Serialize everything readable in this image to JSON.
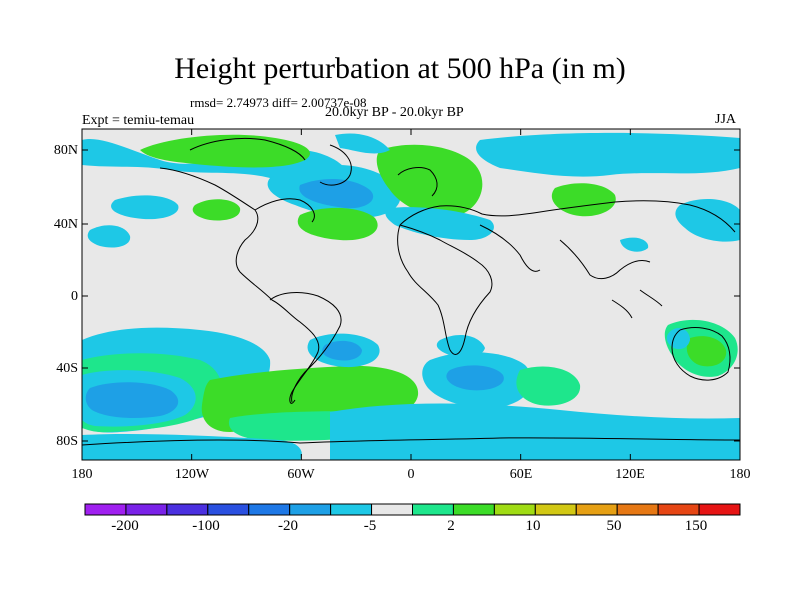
{
  "title": "Height perturbation at 500 hPa (in m)",
  "stats": "rmsd= 2.74973 diff= 2.00737e-08",
  "period": "20.0kyr BP - 20.0kyr BP",
  "experiment": "Expt = temiu-temau",
  "season": "JJA",
  "axes": {
    "y_ticks": [
      "80N",
      "40N",
      "0",
      "40S",
      "80S"
    ],
    "x_ticks": [
      "180",
      "120W",
      "60W",
      "0",
      "60E",
      "120E",
      "180"
    ]
  },
  "colorbar": {
    "labels": [
      "-200",
      "-100",
      "-20",
      "-5",
      "2",
      "10",
      "50",
      "150"
    ],
    "colors": [
      "#a020f0",
      "#7a22e8",
      "#4b30e0",
      "#2a50e0",
      "#1e78e6",
      "#1ea0e6",
      "#1ec8e6",
      "#e8e8e8",
      "#1ee68c",
      "#3cdc28",
      "#a0dc14",
      "#d2c814",
      "#e6a014",
      "#e67814",
      "#e64614",
      "#e61414"
    ]
  },
  "field": {
    "background": "#e8e8e8",
    "cyan": "#1ec8e6",
    "blue": "#1ea0e6",
    "teal": "#1ee68c",
    "green": "#3cdc28"
  }
}
